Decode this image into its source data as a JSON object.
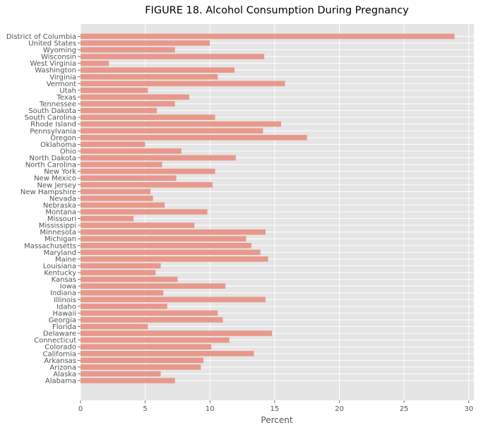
{
  "chart_data": {
    "type": "bar",
    "orientation": "horizontal",
    "title": "FIGURE 18. Alcohol Consumption During Pregnancy",
    "xlabel": "Percent",
    "ylabel": "",
    "xlim": [
      0,
      30.4
    ],
    "xticks": [
      0,
      5,
      10,
      15,
      20,
      25,
      30
    ],
    "grid": true,
    "legend": "none",
    "colors": {
      "bar": "#e8998c",
      "plot_bg": "#e5e5e5",
      "grid": "#ffffff",
      "text": "#555555"
    },
    "categories": [
      "Alabama",
      "Alaska",
      "Arizona",
      "Arkansas",
      "California",
      "Colorado",
      "Connecticut",
      "Delaware",
      "Florida",
      "Georgia",
      "Hawaii",
      "Idaho",
      "Illinois",
      "Indiana",
      "Iowa",
      "Kansas",
      "Kentucky",
      "Louisiana",
      "Maine",
      "Maryland",
      "Massachusetts",
      "Michigan",
      "Minnesota",
      "Mississippi",
      "Missouri",
      "Montana",
      "Nebraska",
      "Nevada",
      "New Hampshire",
      "New Jersey",
      "New Mexico",
      "New York",
      "North Carolina",
      "North Dakota",
      "Ohio",
      "Oklahoma",
      "Oregon",
      "Pennsylvania",
      "Rhode Island",
      "South Carolina",
      "South Dakota",
      "Tennessee",
      "Texas",
      "Utah",
      "Vermont",
      "Virginia",
      "Washington",
      "West Virginia",
      "Wisconsin",
      "Wyoming",
      "United States",
      "District of Columbia"
    ],
    "values": [
      7.3,
      6.2,
      9.3,
      9.5,
      13.4,
      10.1,
      11.5,
      14.8,
      5.2,
      11.0,
      10.6,
      6.7,
      14.3,
      6.4,
      11.2,
      7.5,
      5.8,
      6.2,
      14.5,
      13.9,
      13.2,
      12.8,
      14.3,
      8.8,
      4.1,
      9.8,
      6.5,
      5.6,
      5.4,
      10.2,
      7.4,
      10.4,
      6.3,
      12.0,
      7.8,
      5.0,
      17.5,
      14.1,
      15.5,
      10.4,
      5.9,
      7.3,
      8.4,
      5.2,
      15.8,
      10.6,
      11.9,
      2.2,
      14.2,
      7.3,
      10.0,
      28.9
    ]
  }
}
